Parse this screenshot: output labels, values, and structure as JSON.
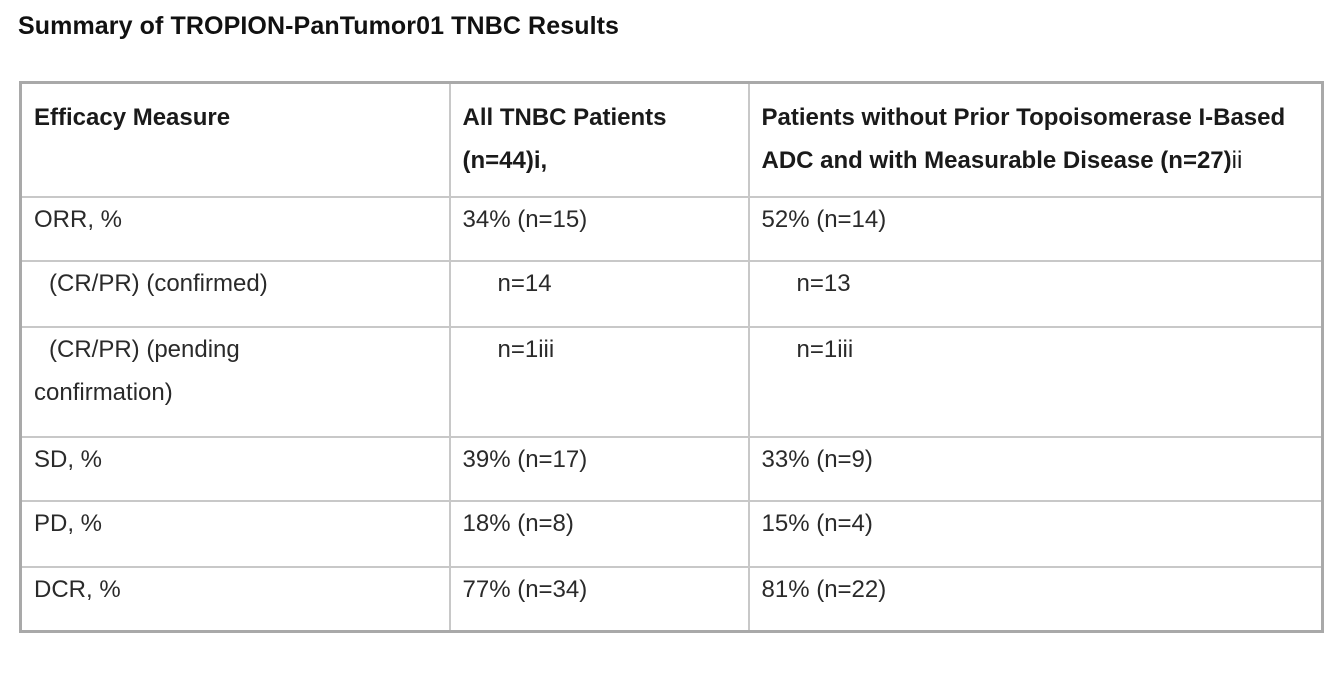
{
  "title": "Summary of TROPION-PanTumor01 TNBC Results",
  "header": {
    "col1": "Efficacy Measure",
    "col2": "All TNBC Patients (n=44)i,",
    "col3_bold": "Patients without Prior Topoisomerase I-Based ADC and with Measurable Disease (n=27)",
    "col3_note": "ii"
  },
  "rows": [
    {
      "measure": "ORR, %",
      "all": "34% (n=15)",
      "subset": "52% (n=14)"
    },
    {
      "measure": "(CR/PR) (confirmed)",
      "all": "n=14",
      "subset": "n=13"
    },
    {
      "measure_line1": "(CR/PR) (pending",
      "measure_line2": "confirmation)",
      "all": "n=1iii",
      "subset": "n=1iii"
    },
    {
      "measure": "SD, %",
      "all": "39% (n=17)",
      "subset": "33% (n=9)"
    },
    {
      "measure": "PD, %",
      "all": "18% (n=8)",
      "subset": "15% (n=4)"
    },
    {
      "measure": "DCR, %",
      "all": "77% (n=34)",
      "subset": "81% (n=22)"
    }
  ]
}
